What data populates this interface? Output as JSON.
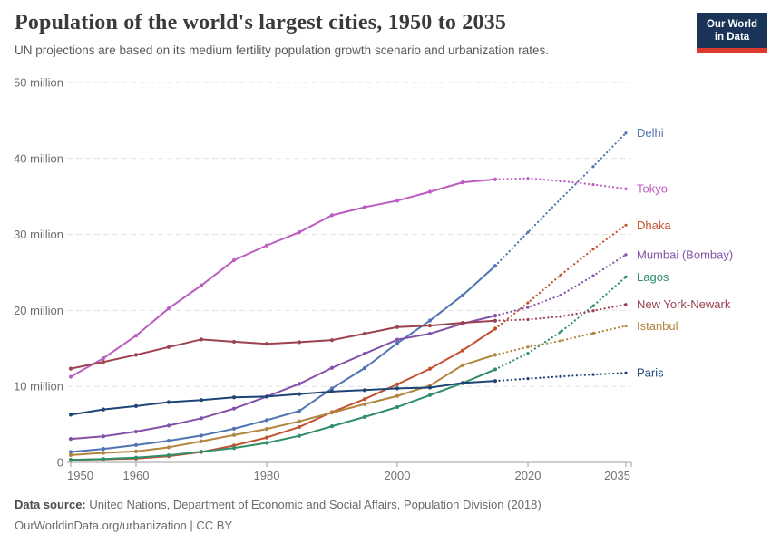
{
  "header": {
    "title": "Population of the world's largest cities, 1950 to 2035",
    "subtitle": "UN projections are based on its medium fertility population growth scenario and urbanization rates.",
    "logo": {
      "line1": "Our World",
      "line2": "in Data",
      "bg_color": "#1A3458",
      "accent_color": "#DC3A2E"
    }
  },
  "chart_data": {
    "type": "line",
    "title": "Population of the world's largest cities, 1950 to 2035",
    "unit": "million people",
    "xlabel": "",
    "ylabel": "",
    "xlim": [
      1950,
      2035
    ],
    "ylim": [
      0,
      50
    ],
    "grid": "horizontal dashed",
    "legend_position": "labels at right end of lines",
    "projection_style": "dotted after 2015",
    "x_ticks": [
      1950,
      1960,
      1980,
      2000,
      2020,
      2035
    ],
    "y_ticks": [
      {
        "value": 0,
        "label": "0"
      },
      {
        "value": 10,
        "label": "10 million"
      },
      {
        "value": 20,
        "label": "20 million"
      },
      {
        "value": 30,
        "label": "30 million"
      },
      {
        "value": 40,
        "label": "40 million"
      },
      {
        "value": 50,
        "label": "50 million"
      }
    ],
    "years_historical": [
      1950,
      1955,
      1960,
      1965,
      1970,
      1975,
      1980,
      1985,
      1990,
      1995,
      2000,
      2005,
      2010,
      2015
    ],
    "years_projected": [
      2015,
      2020,
      2025,
      2030,
      2035
    ],
    "series": [
      {
        "name": "Delhi",
        "color": "#4E74B2",
        "historical": [
          1.37,
          1.78,
          2.28,
          2.85,
          3.53,
          4.43,
          5.56,
          6.77,
          9.73,
          12.41,
          15.69,
          18.67,
          21.99,
          25.87
        ],
        "projected": [
          25.87,
          30.29,
          34.67,
          38.94,
          43.35
        ]
      },
      {
        "name": "Tokyo",
        "color": "#BC5CC0",
        "historical": [
          11.27,
          13.71,
          16.68,
          20.28,
          23.3,
          26.61,
          28.55,
          30.3,
          32.53,
          33.59,
          34.45,
          35.62,
          36.86,
          37.26
        ],
        "projected": [
          37.26,
          37.39,
          37.04,
          36.57,
          36.01
        ]
      },
      {
        "name": "Dhaka",
        "color": "#C2512F",
        "historical": [
          0.34,
          0.41,
          0.51,
          0.82,
          1.37,
          2.22,
          3.27,
          4.66,
          6.62,
          8.33,
          10.28,
          12.32,
          14.73,
          17.6
        ],
        "projected": [
          17.6,
          21.01,
          24.65,
          28.08,
          31.23
        ]
      },
      {
        "name": "Mumbai (Bombay)",
        "color": "#8352A8",
        "historical": [
          3.09,
          3.43,
          4.06,
          4.85,
          5.81,
          7.08,
          8.66,
          10.34,
          12.44,
          14.31,
          16.15,
          16.94,
          18.26,
          19.32
        ],
        "projected": [
          19.32,
          20.41,
          22.0,
          24.57,
          27.34
        ]
      },
      {
        "name": "Lagos",
        "color": "#2F8E68",
        "historical": [
          0.33,
          0.45,
          0.63,
          0.94,
          1.41,
          1.89,
          2.57,
          3.5,
          4.76,
          5.98,
          7.28,
          8.86,
          10.44,
          12.24
        ],
        "projected": [
          12.24,
          14.37,
          17.16,
          20.6,
          24.42
        ]
      },
      {
        "name": "New York-Newark",
        "color": "#9C4351",
        "historical": [
          12.34,
          13.22,
          14.16,
          15.18,
          16.19,
          15.88,
          15.6,
          15.83,
          16.09,
          16.94,
          17.81,
          18.0,
          18.37,
          18.65
        ],
        "projected": [
          18.65,
          18.8,
          19.2,
          19.96,
          20.8
        ]
      },
      {
        "name": "Istanbul",
        "color": "#B2853E",
        "historical": [
          0.97,
          1.25,
          1.45,
          1.99,
          2.77,
          3.6,
          4.4,
          5.41,
          6.55,
          7.67,
          8.74,
          10.12,
          12.79,
          14.16
        ],
        "projected": [
          14.16,
          15.19,
          16.0,
          17.0,
          17.96
        ]
      },
      {
        "name": "Paris",
        "color": "#1D4577",
        "historical": [
          6.28,
          6.97,
          7.41,
          7.94,
          8.21,
          8.56,
          8.67,
          9.0,
          9.33,
          9.51,
          9.74,
          9.85,
          10.46,
          10.72
        ],
        "projected": [
          10.72,
          11.02,
          11.31,
          11.56,
          11.79
        ]
      }
    ]
  },
  "footer": {
    "source_label": "Data source:",
    "source_text": " United Nations, Department of Economic and Social Affairs, Population Division (2018)",
    "attribution": "OurWorldinData.org/urbanization | CC BY"
  }
}
